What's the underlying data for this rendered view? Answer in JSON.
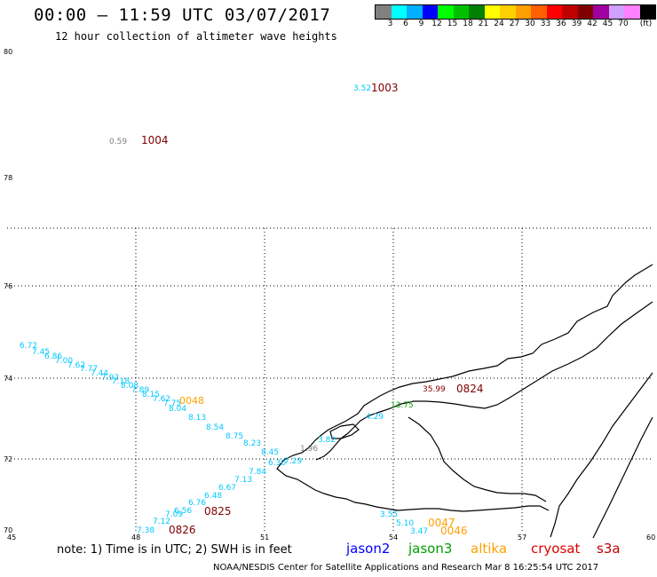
{
  "header": {
    "title": "00:00 — 11:59 UTC 03/07/2017",
    "subtitle": "12 hour collection of altimeter wave heights"
  },
  "legend": {
    "colors": [
      "#808080",
      "#00ffff",
      "#00b0ff",
      "#0000ff",
      "#00ff00",
      "#00c000",
      "#008000",
      "#ffff00",
      "#ffd000",
      "#ffa000",
      "#ff6000",
      "#ff0000",
      "#c00000",
      "#800000",
      "#a000a0",
      "#d0a0ff",
      "#ff80ff",
      "#000000"
    ],
    "labels": [
      "3",
      "6",
      "9",
      "12",
      "15",
      "18",
      "21",
      "24",
      "27",
      "30",
      "33",
      "36",
      "39",
      "42",
      "45",
      "70",
      "(ft)"
    ]
  },
  "axes": {
    "lat_ticks": [
      "80",
      "78",
      "76",
      "74",
      "72",
      "70"
    ],
    "lon_ticks": [
      "45",
      "48",
      "51",
      "54",
      "57",
      "60"
    ]
  },
  "observations": [
    {
      "text": "3.52",
      "color": "#00c8ff"
    },
    {
      "text": "1003",
      "color": "#800000"
    },
    {
      "text": "0.59",
      "color": "#808080"
    },
    {
      "text": "1004",
      "color": "#800000"
    },
    {
      "text": "6.72",
      "color": "#00c8ff"
    },
    {
      "text": "7.45",
      "color": "#00c8ff"
    },
    {
      "text": "6.86",
      "color": "#00c8ff"
    },
    {
      "text": "7.00",
      "color": "#00c8ff"
    },
    {
      "text": "7.62",
      "color": "#00c8ff"
    },
    {
      "text": "7.77",
      "color": "#00c8ff"
    },
    {
      "text": "7.44",
      "color": "#00c8ff"
    },
    {
      "text": "7.92",
      "color": "#00c8ff"
    },
    {
      "text": "7.18",
      "color": "#00c8ff"
    },
    {
      "text": "8.08",
      "color": "#00c8ff"
    },
    {
      "text": "7.89",
      "color": "#00c8ff"
    },
    {
      "text": "8.15",
      "color": "#00c8ff"
    },
    {
      "text": "7.62",
      "color": "#00c8ff"
    },
    {
      "text": "7.75",
      "color": "#00c8ff"
    },
    {
      "text": "8.04",
      "color": "#00c8ff"
    },
    {
      "text": "0048",
      "color": "#ffa000"
    },
    {
      "text": "8.13",
      "color": "#00c8ff"
    },
    {
      "text": "8.54",
      "color": "#00c8ff"
    },
    {
      "text": "8.75",
      "color": "#00c8ff"
    },
    {
      "text": "8.23",
      "color": "#00c8ff"
    },
    {
      "text": "8.45",
      "color": "#00c8ff"
    },
    {
      "text": "6.30",
      "color": "#00c8ff"
    },
    {
      "text": "7.29",
      "color": "#00c8ff"
    },
    {
      "text": "1.96",
      "color": "#808080"
    },
    {
      "text": "3.82",
      "color": "#00c8ff"
    },
    {
      "text": "4.29",
      "color": "#00c8ff"
    },
    {
      "text": "7.84",
      "color": "#00c8ff"
    },
    {
      "text": "7.13",
      "color": "#00c8ff"
    },
    {
      "text": "6.67",
      "color": "#00c8ff"
    },
    {
      "text": "6.48",
      "color": "#00c8ff"
    },
    {
      "text": "6.76",
      "color": "#00c8ff"
    },
    {
      "text": "6.56",
      "color": "#00c8ff"
    },
    {
      "text": "7.09",
      "color": "#00c8ff"
    },
    {
      "text": "7.12",
      "color": "#00c8ff"
    },
    {
      "text": "7.38",
      "color": "#00c8ff"
    },
    {
      "text": "0825",
      "color": "#800000"
    },
    {
      "text": "0826",
      "color": "#800000"
    },
    {
      "text": "35.99",
      "color": "#800000"
    },
    {
      "text": "0824",
      "color": "#800000"
    },
    {
      "text": "13.75",
      "color": "#00a000"
    },
    {
      "text": "3.55",
      "color": "#00c8ff"
    },
    {
      "text": "5.10",
      "color": "#00c8ff"
    },
    {
      "text": "3.47",
      "color": "#00c8ff"
    },
    {
      "text": "0047",
      "color": "#ffa000"
    },
    {
      "text": "0046",
      "color": "#ffa000"
    }
  ],
  "footer": {
    "note": "note: 1) Time is in UTC; 2) SWH is in feet",
    "satellites": [
      {
        "name": "jason2",
        "color": "#0000ff"
      },
      {
        "name": "jason3",
        "color": "#00a000"
      },
      {
        "name": "altika",
        "color": "#ffa000"
      },
      {
        "name": "cryosat",
        "color": "#e00000"
      },
      {
        "name": "s3a",
        "color": "#c00000"
      }
    ],
    "credit": "NOAA/NESDIS Center for Satellite Applications and Research    Mar  8 16:25:54 UTC 2017"
  }
}
